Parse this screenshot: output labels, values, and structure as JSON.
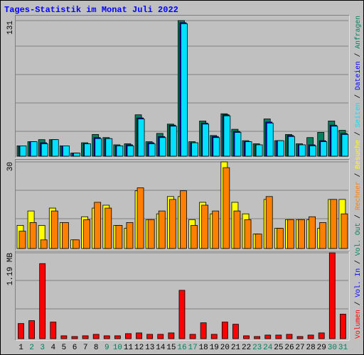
{
  "legend_separator": "/",
  "chart_data": [
    {
      "type": "bar",
      "title": "Tages-Statistik im Monat Juli 2022",
      "ylim": [
        0,
        131
      ],
      "yticks": [
        131
      ],
      "series": [
        {
          "name": "Anfragen",
          "color": "#00805c",
          "values": [
            10,
            14,
            16,
            16,
            10,
            3,
            13,
            21,
            18,
            11,
            12,
            40,
            14,
            22,
            31,
            131,
            14,
            34,
            20,
            41,
            26,
            15,
            12,
            36,
            15,
            21,
            12,
            18,
            23,
            34,
            25
          ]
        },
        {
          "name": "Dateien",
          "color": "#0000ff",
          "values": [
            10,
            14,
            13,
            16,
            10,
            3,
            12,
            18,
            17,
            10,
            11,
            37,
            13,
            19,
            30,
            129,
            13,
            32,
            19,
            40,
            24,
            14,
            11,
            33,
            15,
            20,
            11,
            11,
            15,
            30,
            22
          ]
        },
        {
          "name": "Seiten",
          "color": "#00e0ff",
          "values": [
            10,
            14,
            12,
            16,
            10,
            3,
            12,
            17,
            17,
            10,
            10,
            36,
            12,
            18,
            29,
            128,
            13,
            31,
            18,
            39,
            23,
            14,
            11,
            32,
            15,
            19,
            11,
            10,
            14,
            29,
            21
          ]
        }
      ]
    },
    {
      "type": "bar",
      "ylim": [
        0,
        30
      ],
      "yticks": [
        30
      ],
      "series": [
        {
          "name": "Besuche",
          "color": "#ffff00",
          "values": [
            8,
            13,
            8,
            14,
            9,
            3,
            11,
            14,
            15,
            8,
            7,
            20,
            10,
            12,
            18,
            18,
            10,
            16,
            12,
            30,
            16,
            12,
            5,
            17,
            7,
            10,
            10,
            10,
            7,
            17,
            17
          ]
        },
        {
          "name": "Rechner",
          "color": "#ff8000",
          "values": [
            6,
            9,
            3,
            13,
            9,
            3,
            10,
            16,
            14,
            8,
            9,
            21,
            10,
            13,
            17,
            20,
            8,
            15,
            13,
            28,
            13,
            10,
            5,
            18,
            7,
            10,
            10,
            11,
            9,
            17,
            12
          ]
        }
      ]
    },
    {
      "type": "bar",
      "ylim": [
        0,
        1.19
      ],
      "yticks": [
        {
          "value": 1.19,
          "label": "1.19 MB"
        }
      ],
      "categories": [
        "1",
        "2",
        "3",
        "4",
        "5",
        "6",
        "7",
        "8",
        "9",
        "10",
        "11",
        "12",
        "13",
        "14",
        "15",
        "16",
        "17",
        "18",
        "19",
        "20",
        "21",
        "22",
        "23",
        "24",
        "25",
        "26",
        "27",
        "28",
        "29",
        "30",
        "31"
      ],
      "category_colors": [
        "#000000",
        "#00805c",
        "#00805c",
        "#000000",
        "#000000",
        "#000000",
        "#000000",
        "#000000",
        "#00805c",
        "#00805c",
        "#000000",
        "#000000",
        "#000000",
        "#000000",
        "#000000",
        "#00805c",
        "#00805c",
        "#000000",
        "#000000",
        "#000000",
        "#000000",
        "#000000",
        "#00805c",
        "#00805c",
        "#000000",
        "#000000",
        "#000000",
        "#000000",
        "#000000",
        "#00805c",
        "#00805c"
      ],
      "series": [
        {
          "name": "Volumen",
          "color": "#ff0000",
          "values": [
            0.21,
            0.25,
            1.04,
            0.23,
            0.04,
            0.03,
            0.04,
            0.06,
            0.04,
            0.04,
            0.07,
            0.08,
            0.06,
            0.06,
            0.08,
            0.67,
            0.06,
            0.22,
            0.06,
            0.23,
            0.2,
            0.04,
            0.03,
            0.05,
            0.05,
            0.06,
            0.03,
            0.05,
            0.08,
            1.19,
            0.34
          ]
        }
      ],
      "legend_extra": [
        {
          "name": "Vol. In",
          "color": "#0000ff"
        },
        {
          "name": "Vol. Out",
          "color": "#00805c"
        }
      ]
    }
  ]
}
